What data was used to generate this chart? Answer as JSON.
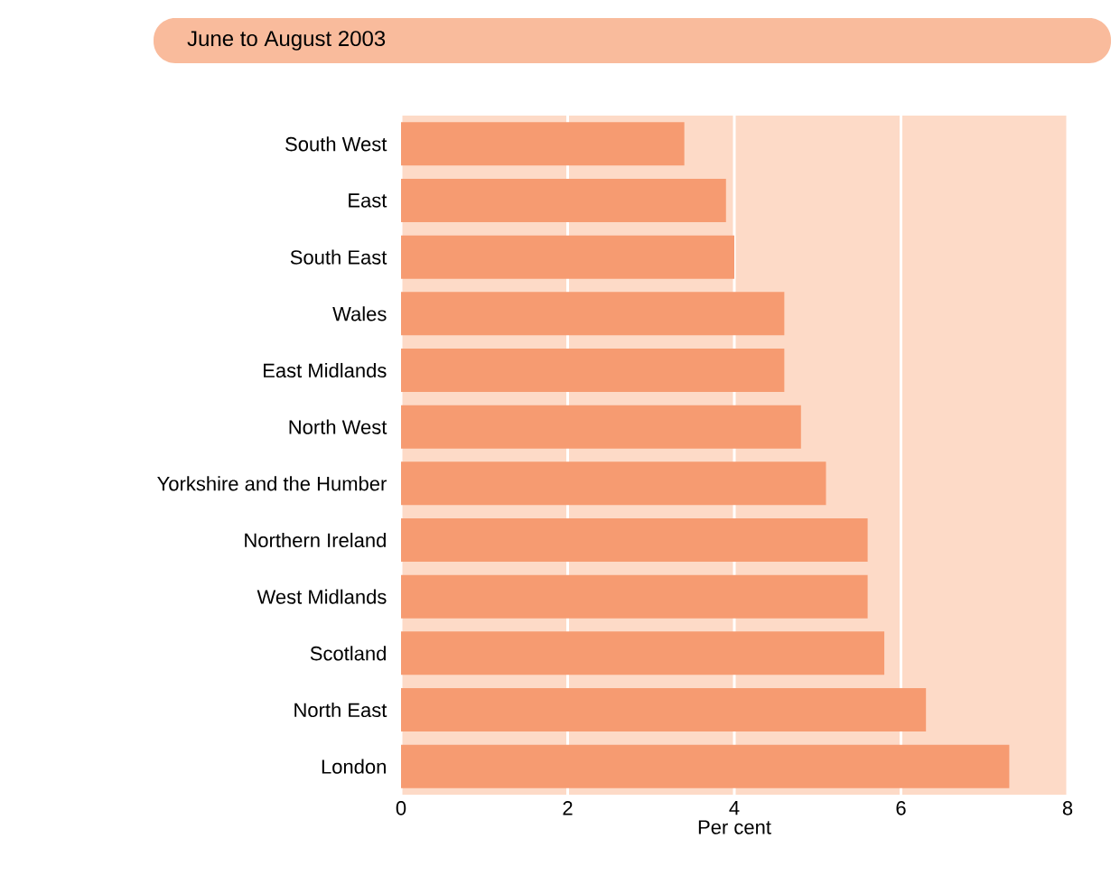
{
  "chart_data": {
    "type": "bar",
    "orientation": "horizontal",
    "title": "June to August 2003",
    "xlabel": "Per cent",
    "categories": [
      "South West",
      "East",
      "South East",
      "Wales",
      "East Midlands",
      "North West",
      "Yorkshire and the Humber",
      "Northern Ireland",
      "West Midlands",
      "Scotland",
      "North East",
      "London"
    ],
    "values": [
      3.4,
      3.9,
      4.0,
      4.6,
      4.6,
      4.8,
      5.1,
      5.6,
      5.6,
      5.8,
      6.3,
      7.3
    ],
    "color": "#f69b71",
    "xlim": [
      0,
      8
    ],
    "xticks": [
      0,
      2,
      4,
      6,
      8
    ],
    "grid": "x"
  }
}
